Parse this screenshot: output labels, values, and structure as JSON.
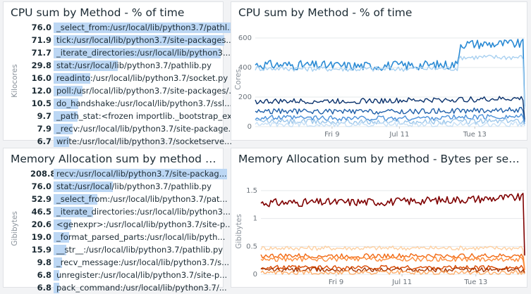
{
  "panels": {
    "cpu_list": {
      "title": "CPU sum by Method - % of time",
      "axis_label": "Kilocores",
      "rows": [
        {
          "value": "76.0",
          "pct": 1.0,
          "label": "_select_from:/usr/local/lib/python3.7/pathl..."
        },
        {
          "value": "71.9",
          "pct": 0.946,
          "label": "tick:/usr/local/lib/python3.7/site-packages..."
        },
        {
          "value": "71.7",
          "pct": 0.943,
          "label": "_iterate_directories:/usr/local/lib/python3..."
        },
        {
          "value": "29.8",
          "pct": 0.392,
          "label": "stat:/usr/local/lib/python3.7/pathlib.py"
        },
        {
          "value": "16.0",
          "pct": 0.211,
          "label": "readinto:/usr/local/lib/python3.7/socket.py"
        },
        {
          "value": "12.0",
          "pct": 0.158,
          "label": "poll:/usr/local/lib/python3.7/site-packages/..."
        },
        {
          "value": "10.5",
          "pct": 0.138,
          "label": "do_handshake:/usr/local/lib/python3.7/ssl...."
        },
        {
          "value": "9.7",
          "pct": 0.128,
          "label": "_path_stat:<frozen importlib._bootstrap_ex..."
        },
        {
          "value": "7.9",
          "pct": 0.104,
          "label": "_recv:/usr/local/lib/python3.7/site-package..."
        },
        {
          "value": "6.7",
          "pct": 0.088,
          "label": "write:/usr/local/lib/python3.7/socketserve..."
        }
      ]
    },
    "cpu_chart": {
      "title": "CPU sum by Method - % of time",
      "axis_label": "Cores"
    },
    "mem_list": {
      "title": "Memory Allocation sum by method - Byt...",
      "axis_label": "Gibibytes",
      "rows": [
        {
          "value": "208.8",
          "pct": 1.0,
          "label": "recv:/usr/local/lib/python3.7/site-packag..."
        },
        {
          "value": "76.0",
          "pct": 0.364,
          "label": "stat:/usr/local/lib/python3.7/pathlib.py"
        },
        {
          "value": "52.9",
          "pct": 0.253,
          "label": "_select_from:/usr/local/lib/python3.7/pat..."
        },
        {
          "value": "46.5",
          "pct": 0.223,
          "label": "_iterate_directories:/usr/local/lib/python3..."
        },
        {
          "value": "20.6",
          "pct": 0.099,
          "label": "<genexpr>:/usr/local/lib/python3.7/site-p..."
        },
        {
          "value": "19.0",
          "pct": 0.091,
          "label": "_format_parsed_parts:/usr/local/lib/pyth..."
        },
        {
          "value": "15.9",
          "pct": 0.076,
          "label": "__str__:/usr/local/lib/python3.7/pathlib.py"
        },
        {
          "value": "9.8",
          "pct": 0.047,
          "label": "_recv_message:/usr/local/lib/python3.7/s..."
        },
        {
          "value": "6.8",
          "pct": 0.033,
          "label": "unregister:/usr/local/lib/python3.7/site-p..."
        },
        {
          "value": "6.8",
          "pct": 0.033,
          "label": "pack_command:/usr/local/lib/python3.7/..."
        }
      ]
    },
    "mem_chart": {
      "title": "Memory Allocation sum by method - Bytes per second",
      "axis_label": "Gibibytes"
    }
  },
  "chart_data": [
    {
      "type": "line",
      "title": "CPU sum by Method - % of time",
      "ylabel": "Cores",
      "ylim": [
        0,
        700
      ],
      "yticks": [
        "0",
        "200",
        "400",
        "600"
      ],
      "xticks": [
        "Fri 9",
        "Jul 11",
        "Tue 13"
      ],
      "colors": [
        "#2a8ad4",
        "#a8d0f0",
        "#08306b",
        "#1f5fa8",
        "#4a90d9",
        "#9cc6ea",
        "#c9e1f6"
      ],
      "series": [
        {
          "segments": [
            [
              0,
              420
            ],
            [
              0.4,
              410
            ],
            [
              0.75,
              420
            ],
            [
              0.76,
              560
            ],
            [
              1.0,
              560
            ]
          ]
        },
        {
          "segments": [
            [
              0,
              395
            ],
            [
              0.4,
              390
            ],
            [
              0.75,
              395
            ],
            [
              0.76,
              470
            ],
            [
              1.0,
              470
            ]
          ]
        },
        {
          "segments": [
            [
              0,
              170
            ],
            [
              0.5,
              175
            ],
            [
              1.0,
              190
            ]
          ]
        },
        {
          "segments": [
            [
              0,
              105
            ],
            [
              0.5,
              100
            ],
            [
              1.0,
              115
            ]
          ]
        },
        {
          "segments": [
            [
              0,
              60
            ],
            [
              0.5,
              55
            ],
            [
              1.0,
              70
            ]
          ]
        },
        {
          "segments": [
            [
              0,
              35
            ],
            [
              0.5,
              30
            ],
            [
              1.0,
              40
            ]
          ]
        },
        {
          "segments": [
            [
              0,
              15
            ],
            [
              0.5,
              12
            ],
            [
              1.0,
              18
            ]
          ]
        }
      ]
    },
    {
      "type": "line",
      "title": "Memory Allocation sum by method - Bytes per second",
      "ylabel": "Gibibytes",
      "ylim": [
        0,
        1.6
      ],
      "yticks": [
        "0",
        "0.5",
        "1",
        "1.5"
      ],
      "xticks": [
        "Fri 9",
        "Jul 11",
        "Tue 13"
      ],
      "colors": [
        "#7f0000",
        "#fdd0a2",
        "#f16913",
        "#fd8d3c",
        "#d94801",
        "#a63603",
        "#fdae6b"
      ],
      "series": [
        {
          "segments": [
            [
              0,
              1.28
            ],
            [
              0.5,
              1.3
            ],
            [
              1.0,
              1.38
            ]
          ]
        },
        {
          "segments": [
            [
              0,
              0.47
            ],
            [
              1.0,
              0.47
            ]
          ]
        },
        {
          "segments": [
            [
              0,
              0.33
            ],
            [
              1.0,
              0.33
            ]
          ]
        },
        {
          "segments": [
            [
              0,
              0.27
            ],
            [
              1.0,
              0.27
            ]
          ]
        },
        {
          "segments": [
            [
              0,
              0.12
            ],
            [
              1.0,
              0.12
            ]
          ]
        },
        {
          "segments": [
            [
              0,
              0.08
            ],
            [
              1.0,
              0.08
            ]
          ]
        },
        {
          "segments": [
            [
              0,
              0.03
            ],
            [
              1.0,
              0.03
            ]
          ]
        }
      ]
    }
  ]
}
